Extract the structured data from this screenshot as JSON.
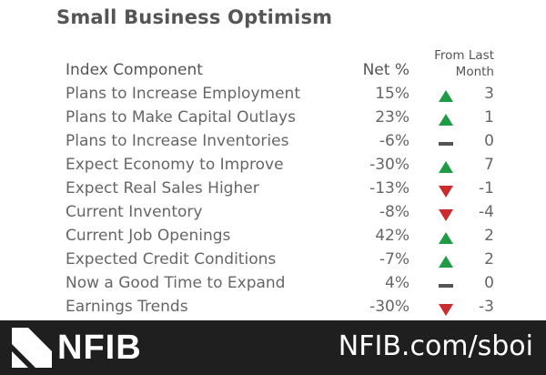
{
  "title": "Small Business Optimism",
  "colors": {
    "up": "#1f9b45",
    "down": "#cc2b2b",
    "flat": "#555555",
    "footer": "#1f1f1f"
  },
  "chart_data": {
    "type": "table",
    "title": "Small Business Optimism",
    "columns": [
      "Index Component",
      "Net %",
      "From Last Month"
    ],
    "rows": [
      {
        "component": "Plans to Increase Employment",
        "net": "15%",
        "direction": "up",
        "change": "3"
      },
      {
        "component": "Plans to Make Capital Outlays",
        "net": "23%",
        "direction": "up",
        "change": "1"
      },
      {
        "component": "Plans to Increase Inventories",
        "net": "-6%",
        "direction": "flat",
        "change": "0"
      },
      {
        "component": "Expect Economy to Improve",
        "net": "-30%",
        "direction": "up",
        "change": "7"
      },
      {
        "component": "Expect Real Sales Higher",
        "net": "-13%",
        "direction": "down",
        "change": "-1"
      },
      {
        "component": "Current Inventory",
        "net": "-8%",
        "direction": "down",
        "change": "-4"
      },
      {
        "component": "Current Job Openings",
        "net": "42%",
        "direction": "up",
        "change": "2"
      },
      {
        "component": "Expected Credit Conditions",
        "net": "-7%",
        "direction": "up",
        "change": "2"
      },
      {
        "component": "Now a Good Time to Expand",
        "net": "4%",
        "direction": "flat",
        "change": "0"
      },
      {
        "component": "Earnings Trends",
        "net": "-30%",
        "direction": "down",
        "change": "-3"
      }
    ]
  },
  "header": {
    "component": "Index Component",
    "net": "Net %",
    "change_line1": "From Last",
    "change_line2": "Month"
  },
  "footer": {
    "logo_text": "NFIB",
    "url": "NFIB.com/sboi"
  }
}
